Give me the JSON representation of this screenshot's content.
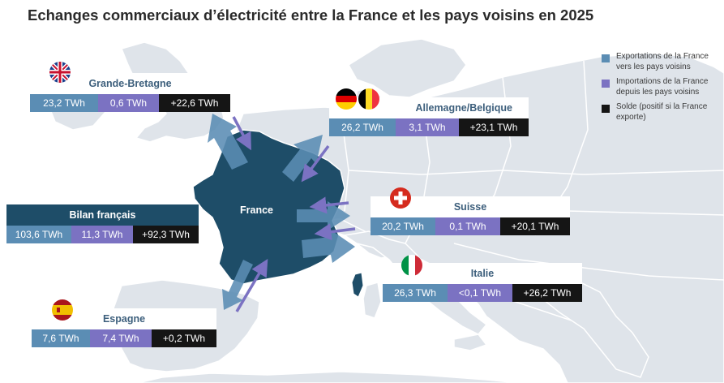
{
  "title": "Echanges commerciaux d’électricité entre la France et les pays voisins en 2025",
  "colors": {
    "exports": "#5b8db4",
    "imports": "#7b72c2",
    "balance": "#151515",
    "france": "#1e4d68",
    "land": "#dfe4ea",
    "borders": "#ffffff"
  },
  "france_label": "France",
  "legend": [
    {
      "key": "exports",
      "label": "Exportations de la France vers les pays voisins"
    },
    {
      "key": "imports",
      "label": "Importations de la France depuis les pays voisins"
    },
    {
      "key": "balance",
      "label": "Solde (positif si la France exporte)"
    }
  ],
  "countries": {
    "uk": {
      "name": "Grande-Bretagne",
      "exports": "23,2 TWh",
      "imports": "0,6 TWh",
      "balance": "+22,6 TWh",
      "flag": "uk-flag"
    },
    "de_be": {
      "name": "Allemagne/Belgique",
      "exports": "26,2 TWh",
      "imports": "3,1 TWh",
      "balance": "+23,1 TWh",
      "flags": [
        "germany-flag",
        "belgium-flag"
      ]
    },
    "ch": {
      "name": "Suisse",
      "exports": "20,2 TWh",
      "imports": "0,1 TWh",
      "balance": "+20,1 TWh",
      "flag": "switzerland-flag"
    },
    "it": {
      "name": "Italie",
      "exports": "26,3 TWh",
      "imports": "<0,1 TWh",
      "balance": "+26,2 TWh",
      "flag": "italy-flag"
    },
    "es": {
      "name": "Espagne",
      "exports": "7,6 TWh",
      "imports": "7,4 TWh",
      "balance": "+0,2 TWh",
      "flag": "spain-flag"
    }
  },
  "bilan": {
    "name": "Bilan français",
    "exports": "103,6 TWh",
    "imports": "11,3 TWh",
    "balance": "+92,3 TWh"
  }
}
